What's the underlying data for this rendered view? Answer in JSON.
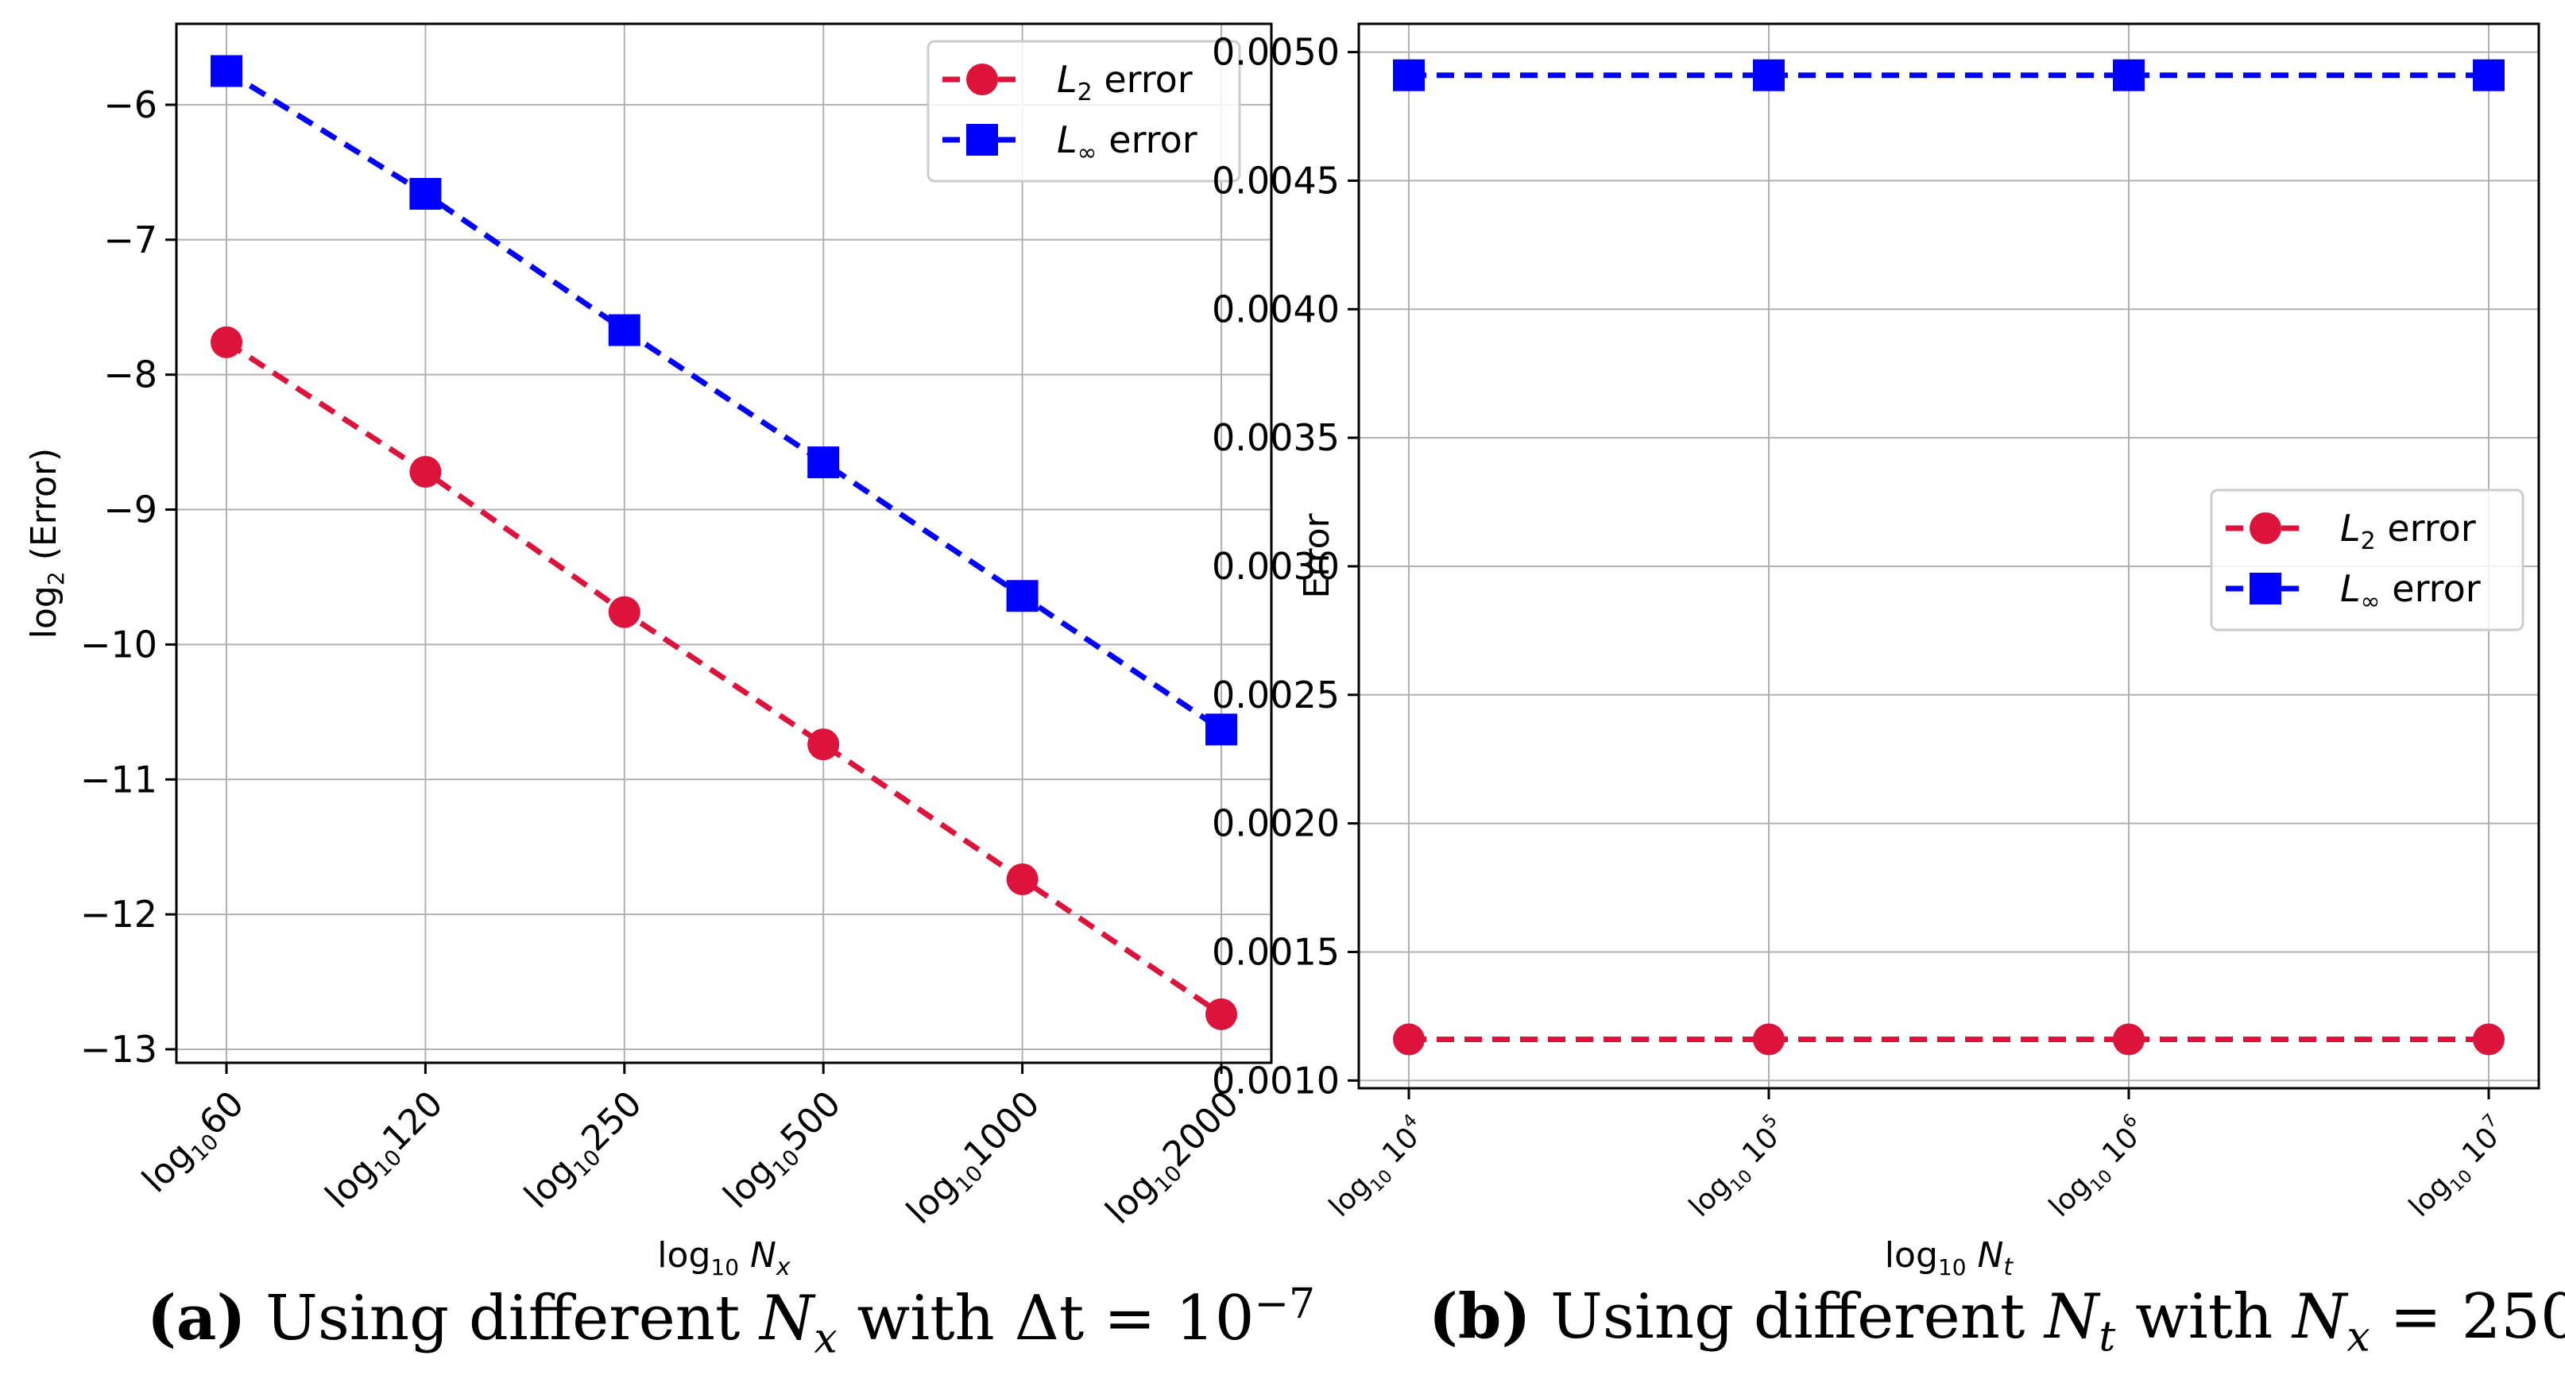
{
  "chart_data": [
    {
      "type": "line",
      "panel": "a",
      "title": "",
      "xlabel": "log10 Nx",
      "ylabel": "log2 (Error)",
      "categories": [
        "log1060",
        "log10120",
        "log10250",
        "log10500",
        "log101000",
        "log102000"
      ],
      "category_ticks": [
        {
          "base": "log",
          "sub": "10",
          "num": "60"
        },
        {
          "base": "log",
          "sub": "10",
          "num": "120"
        },
        {
          "base": "log",
          "sub": "10",
          "num": "250"
        },
        {
          "base": "log",
          "sub": "10",
          "num": "500"
        },
        {
          "base": "log",
          "sub": "10",
          "num": "1000"
        },
        {
          "base": "log",
          "sub": "10",
          "num": "2000"
        }
      ],
      "ylim": [
        -13.1,
        -5.4
      ],
      "yticks": [
        -6,
        -7,
        -8,
        -9,
        -10,
        -11,
        -12,
        -13
      ],
      "ytick_labels": [
        "−6",
        "−7",
        "−8",
        "−9",
        "−10",
        "−11",
        "−12",
        "−13"
      ],
      "grid": true,
      "legend": "upper right",
      "series": [
        {
          "name": "L2 error",
          "legend_sym": "L",
          "legend_sub": "2",
          "legend_text": "error",
          "color": "#dc143c",
          "marker": "circle",
          "values": [
            -7.76,
            -8.72,
            -9.76,
            -10.74,
            -11.74,
            -12.74
          ]
        },
        {
          "name": "L∞ error",
          "legend_sym": "L",
          "legend_sub": "∞",
          "legend_text": "error",
          "color": "#0000ff",
          "marker": "square",
          "values": [
            -5.75,
            -6.66,
            -7.67,
            -8.65,
            -9.64,
            -10.63
          ]
        }
      ]
    },
    {
      "type": "line",
      "panel": "b",
      "title": "",
      "xlabel": "log10 Nt",
      "ylabel": "Error",
      "categories": [
        "log10 10^4",
        "log10 10^5",
        "log10 10^6",
        "log10 10^7"
      ],
      "category_ticks": [
        {
          "base": "log",
          "sub": "10",
          "num": "10",
          "exp": "4"
        },
        {
          "base": "log",
          "sub": "10",
          "num": "10",
          "exp": "5"
        },
        {
          "base": "log",
          "sub": "10",
          "num": "10",
          "exp": "6"
        },
        {
          "base": "log",
          "sub": "10",
          "num": "10",
          "exp": "7"
        }
      ],
      "ylim": [
        0.00097,
        0.00511
      ],
      "yticks": [
        0.001,
        0.0015,
        0.002,
        0.0025,
        0.003,
        0.0035,
        0.004,
        0.0045,
        0.005
      ],
      "ytick_labels": [
        "0.0010",
        "0.0015",
        "0.0020",
        "0.0025",
        "0.0030",
        "0.0035",
        "0.0040",
        "0.0045",
        "0.0050"
      ],
      "grid": true,
      "legend": "center right",
      "series": [
        {
          "name": "L2 error",
          "legend_sym": "L",
          "legend_sub": "2",
          "legend_text": "error",
          "color": "#dc143c",
          "marker": "circle",
          "values": [
            0.00116,
            0.00116,
            0.00116,
            0.00116
          ]
        },
        {
          "name": "L∞ error",
          "legend_sym": "L",
          "legend_sub": "∞",
          "legend_text": "error",
          "color": "#0000ff",
          "marker": "square",
          "values": [
            0.00491,
            0.00491,
            0.00491,
            0.00491
          ]
        }
      ]
    }
  ],
  "captions": {
    "a": {
      "label": "(a)",
      "text": "Using different",
      "var": "N",
      "var_sub": "x",
      "mid": "with",
      "rhs": "Δt",
      "eq": "=",
      "value": "10",
      "exp": "−7"
    },
    "b": {
      "label": "(b)",
      "text": "Using different",
      "var": "N",
      "var_sub": "t",
      "mid": "with",
      "rhs": "N",
      "rhs_sub": "x",
      "eq": "=",
      "value": "250"
    }
  }
}
